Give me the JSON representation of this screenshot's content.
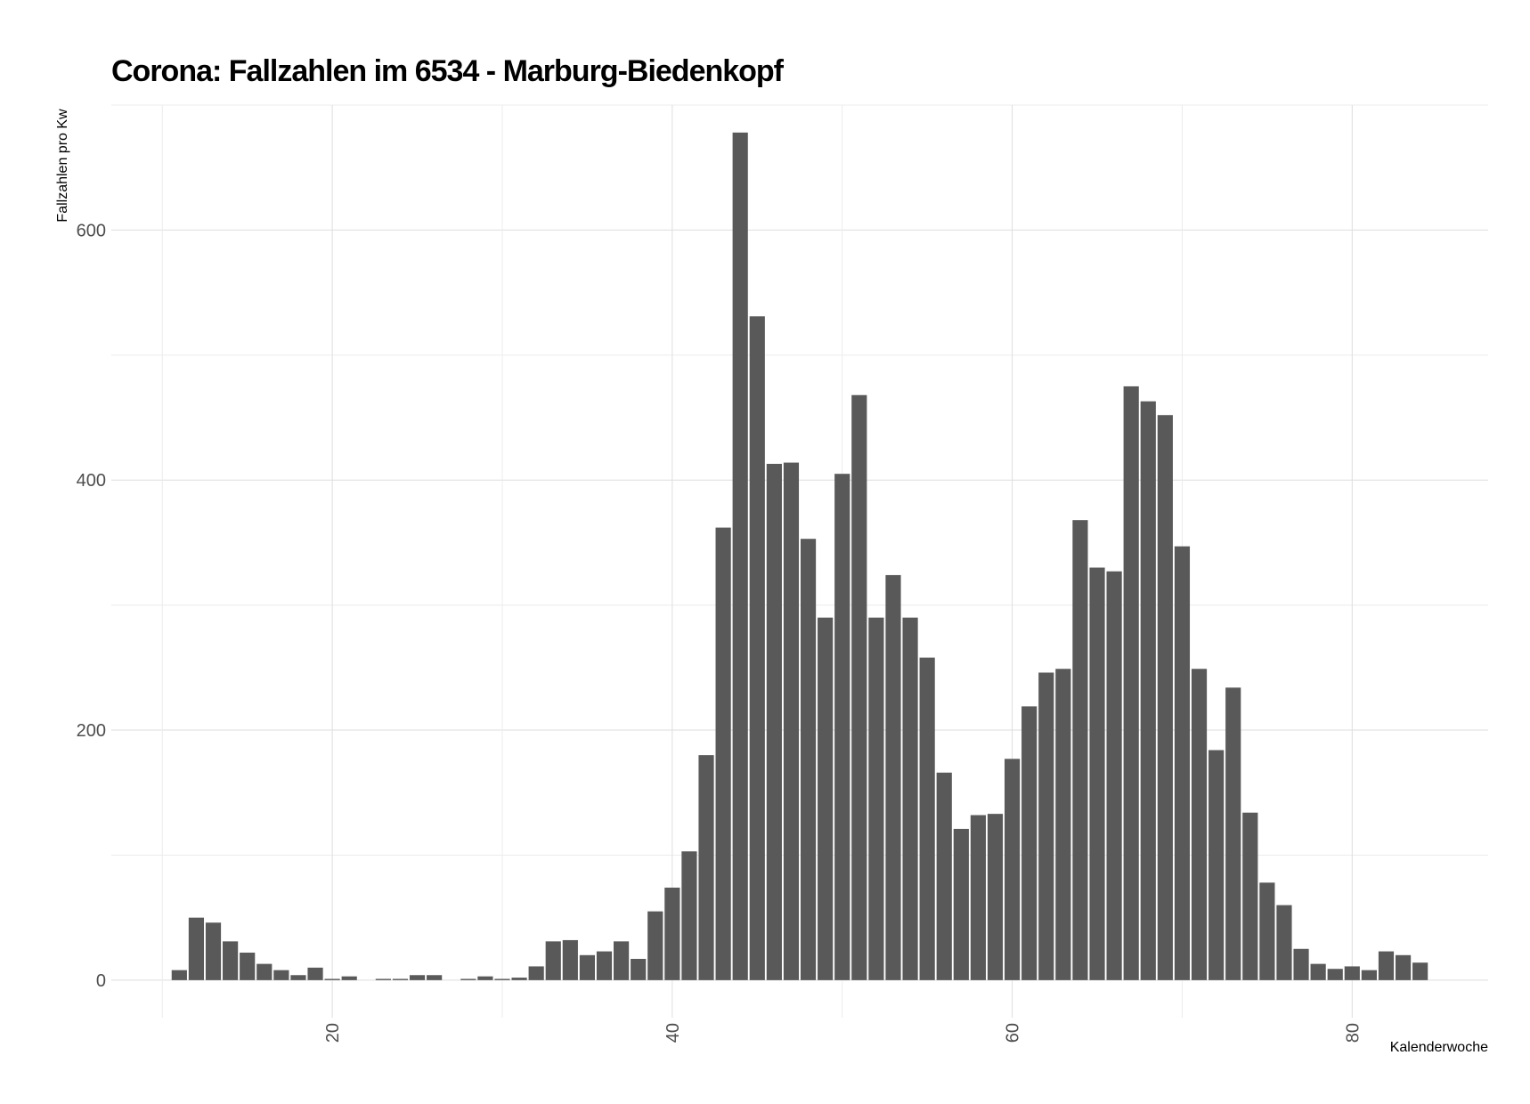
{
  "chart_data": {
    "type": "bar",
    "title": "Corona: Fallzahlen im 6534 - Marburg-Biedenkopf",
    "xlabel": "Kalenderwoche",
    "ylabel": "Fallzahlen pro Kw",
    "xlim": [
      7,
      88
    ],
    "ylim": [
      -30,
      700
    ],
    "x_ticks": [
      20,
      40,
      60,
      80
    ],
    "y_ticks": [
      0,
      200,
      400,
      600
    ],
    "grid": true,
    "legend": "none",
    "bar_color": "#595959",
    "x": [
      11,
      12,
      13,
      14,
      15,
      16,
      17,
      18,
      19,
      20,
      21,
      22,
      23,
      24,
      25,
      26,
      27,
      28,
      29,
      30,
      31,
      32,
      33,
      34,
      35,
      36,
      37,
      38,
      39,
      40,
      41,
      42,
      43,
      44,
      45,
      46,
      47,
      48,
      49,
      50,
      51,
      52,
      53,
      54,
      55,
      56,
      57,
      58,
      59,
      60,
      61,
      62,
      63,
      64,
      65,
      66,
      67,
      68,
      69,
      70,
      71,
      72,
      73,
      74,
      75,
      76,
      77,
      78,
      79,
      80,
      81,
      82,
      83,
      84
    ],
    "values": [
      8,
      50,
      46,
      31,
      22,
      13,
      8,
      4,
      10,
      1,
      3,
      0,
      1,
      1,
      4,
      4,
      0,
      1,
      3,
      1,
      2,
      11,
      31,
      32,
      20,
      23,
      31,
      17,
      55,
      74,
      103,
      180,
      362,
      678,
      531,
      413,
      414,
      353,
      290,
      405,
      468,
      290,
      324,
      290,
      258,
      166,
      121,
      132,
      133,
      177,
      219,
      246,
      249,
      368,
      330,
      327,
      475,
      463,
      452,
      347,
      249,
      184,
      234,
      134,
      78,
      60,
      25,
      13,
      9,
      11,
      8,
      23,
      20,
      14
    ]
  }
}
